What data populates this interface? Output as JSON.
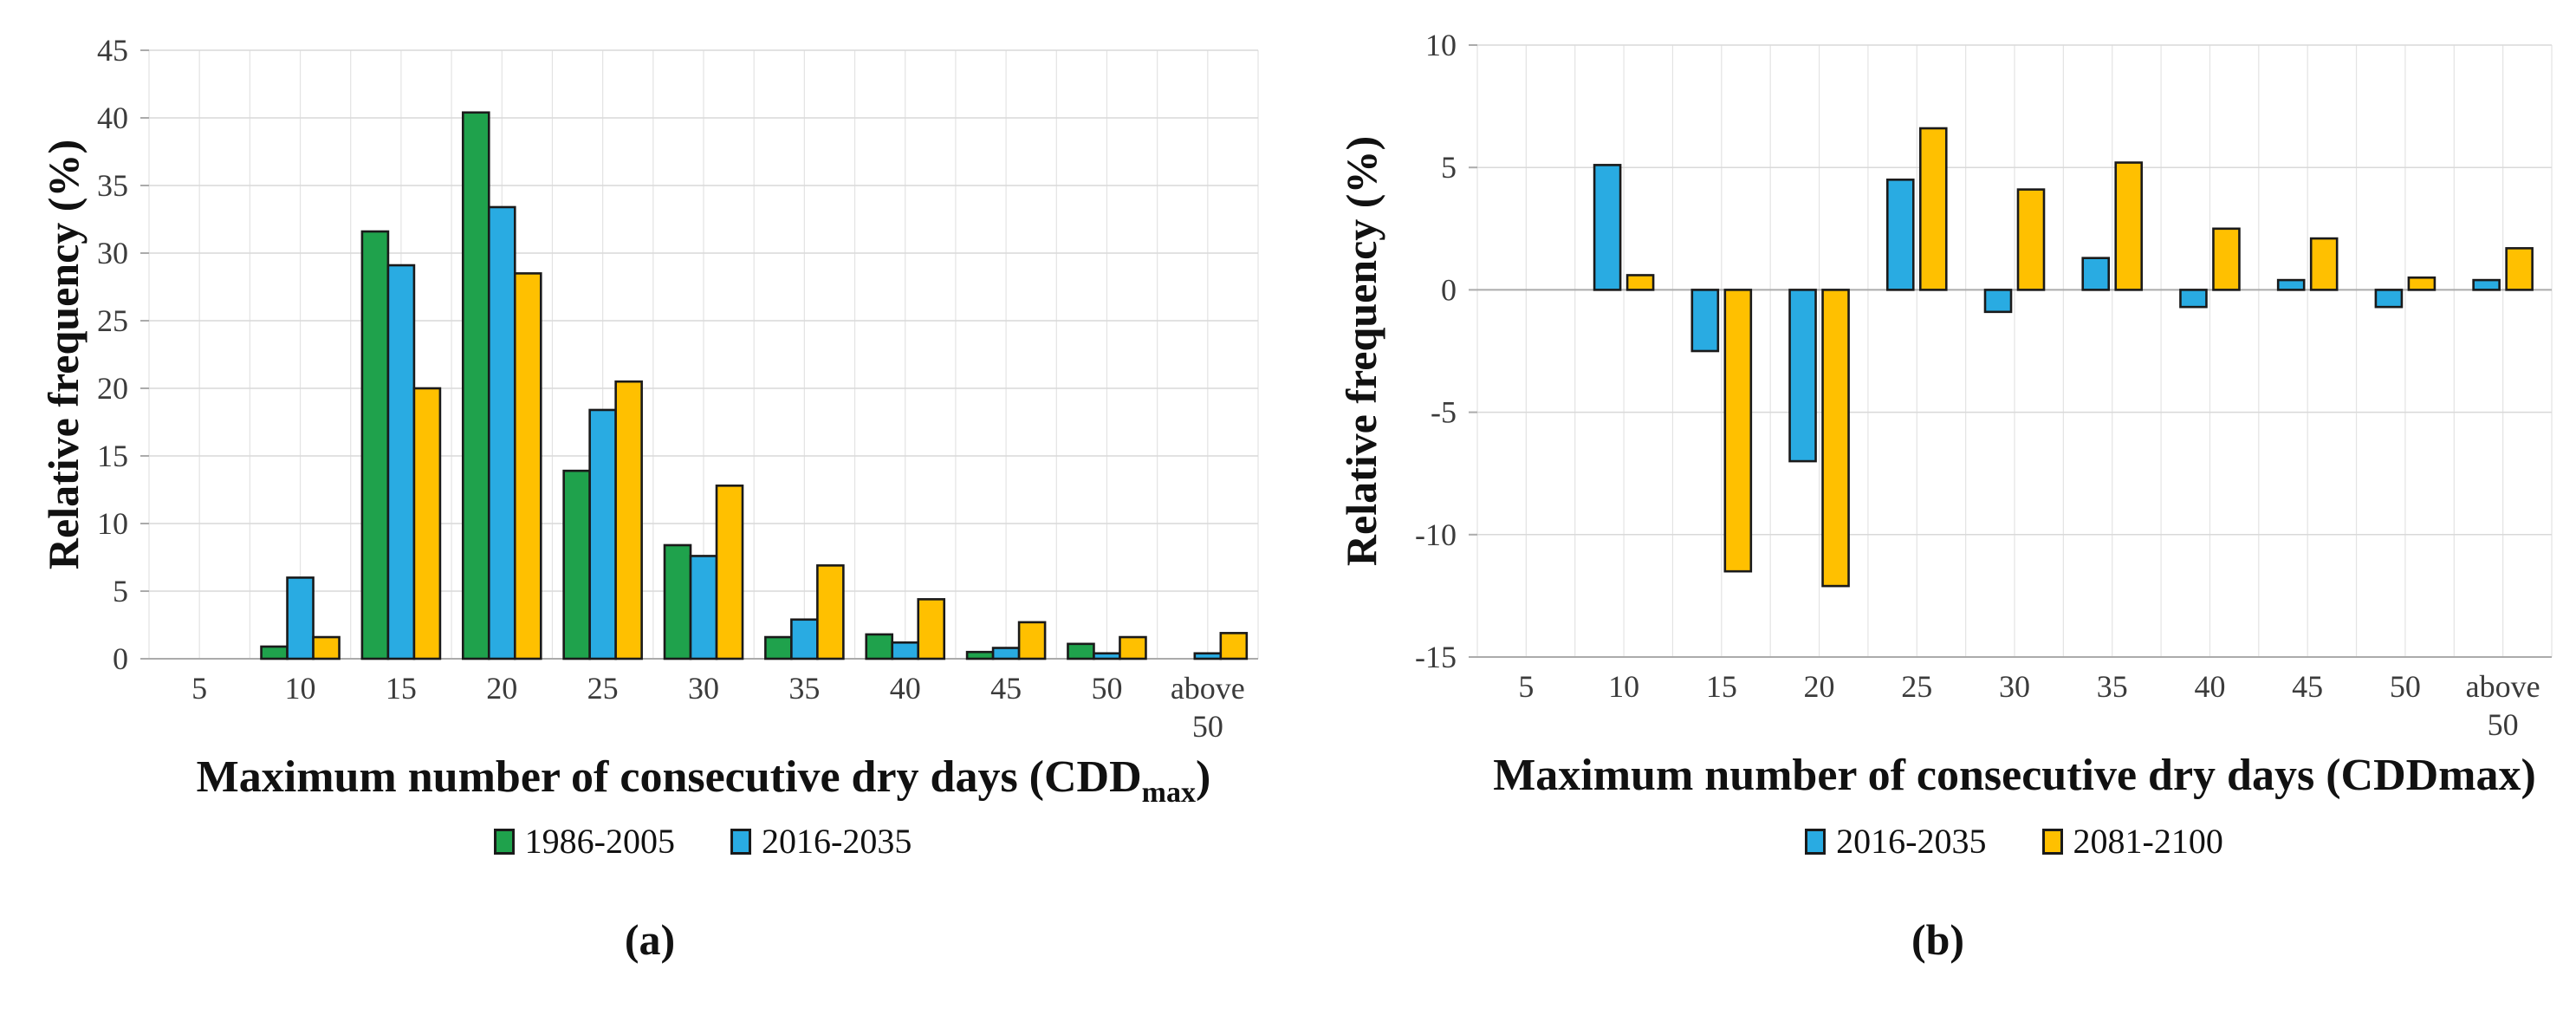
{
  "figure": {
    "caption_a": "(a)",
    "caption_b": "(b)"
  },
  "colors": {
    "series_green": "#1FA24C",
    "series_blue": "#29ABE2",
    "series_yellow": "#FFC000",
    "bar_outline": "#1A1A1A",
    "grid": "#D9D9D9",
    "grid_vertical": "#E3E3E3",
    "axis": "#ABABAB",
    "tick_text": "#3B3B3B",
    "title_text": "#111111"
  },
  "chart_data": [
    {
      "id": "a",
      "type": "bar",
      "ylabel": "Relative frequency (%)",
      "xlabel_parts": [
        {
          "text": "Maximum number of consecutive dry days (CDD",
          "sub": false
        },
        {
          "text": "max",
          "sub": true
        },
        {
          "text": ")",
          "sub": false
        }
      ],
      "categories": [
        "5",
        "10",
        "15",
        "20",
        "25",
        "30",
        "35",
        "40",
        "45",
        "50",
        "above 50"
      ],
      "ylim": [
        0,
        45
      ],
      "yticks": [
        45,
        40,
        35,
        30,
        25,
        20,
        15,
        10,
        5,
        0
      ],
      "ytick_step": 5,
      "grid": "on",
      "legend_position": "bottom",
      "legend": [
        {
          "label": "1986-2005",
          "color_key": "series_green"
        },
        {
          "label": "2016-2035",
          "color_key": "series_blue"
        }
      ],
      "series": [
        {
          "name": "1986-2005",
          "color_key": "series_green",
          "values": [
            0,
            0.9,
            31.6,
            40.4,
            13.9,
            8.4,
            1.6,
            1.8,
            0.5,
            1.1,
            0
          ]
        },
        {
          "name": "2016-2035",
          "color_key": "series_blue",
          "values": [
            0,
            6.0,
            29.1,
            33.4,
            18.4,
            7.6,
            2.9,
            1.2,
            0.8,
            0.4,
            0.4
          ]
        },
        {
          "name": "2081-2100",
          "color_key": "series_yellow",
          "values": [
            0,
            1.6,
            20.0,
            28.5,
            20.5,
            12.8,
            6.9,
            4.4,
            2.7,
            1.6,
            1.9
          ]
        }
      ]
    },
    {
      "id": "b",
      "type": "bar",
      "ylabel": "Relative frequency (%)",
      "xlabel_parts": [
        {
          "text": "Maximum number of consecutive dry days (CDDmax)",
          "sub": false
        }
      ],
      "categories": [
        "5",
        "10",
        "15",
        "20",
        "25",
        "30",
        "35",
        "40",
        "45",
        "50",
        "above 50"
      ],
      "ylim": [
        -15,
        10
      ],
      "yticks": [
        10,
        5,
        0,
        -5,
        -10,
        -15
      ],
      "ytick_step": 5,
      "grid": "on",
      "legend_position": "bottom",
      "legend": [
        {
          "label": "2016-2035",
          "color_key": "series_blue"
        },
        {
          "label": "2081-2100",
          "color_key": "series_yellow"
        }
      ],
      "series": [
        {
          "name": "2016-2035",
          "color_key": "series_blue",
          "values": [
            0,
            5.1,
            -2.5,
            -7.0,
            4.5,
            -0.9,
            1.3,
            -0.7,
            0.4,
            -0.7,
            0.4
          ]
        },
        {
          "name": "2081-2100",
          "color_key": "series_yellow",
          "values": [
            0,
            0.6,
            -11.5,
            -12.1,
            6.6,
            4.1,
            5.2,
            2.5,
            2.1,
            0.5,
            1.7
          ]
        }
      ]
    }
  ]
}
